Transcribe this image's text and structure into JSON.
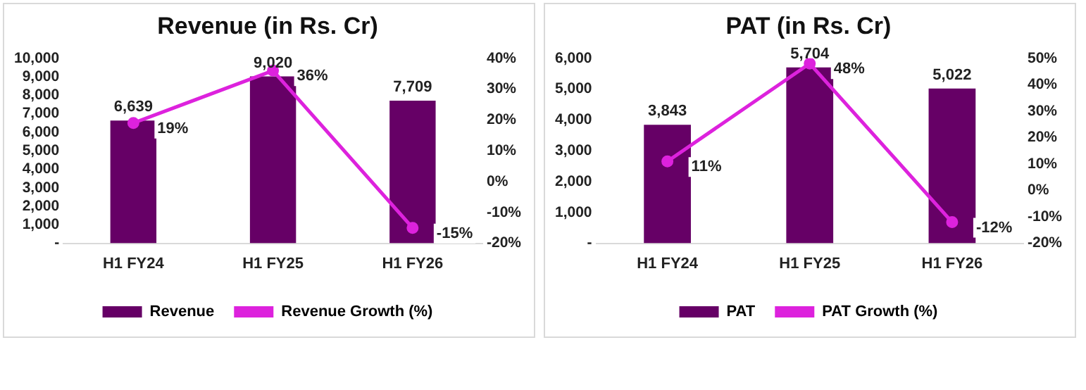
{
  "chart_data": [
    {
      "type": "bar",
      "title": "Revenue (in Rs. Cr)",
      "categories": [
        "H1 FY24",
        "H1 FY25",
        "H1 FY26"
      ],
      "series": [
        {
          "name": "Revenue",
          "color": "#660066",
          "values": [
            6639,
            9020,
            7709
          ],
          "value_labels": [
            "6,639",
            "9,020",
            "7,709"
          ]
        },
        {
          "name": "Revenue Growth (%)",
          "type": "line",
          "axis": "y2",
          "color": "#dd22dd",
          "values": [
            19,
            36,
            -15
          ],
          "value_labels": [
            "19%",
            "36%",
            "-15%"
          ]
        }
      ],
      "ylim": [
        0,
        10000
      ],
      "yticks": [
        {
          "value": 0,
          "label": "-"
        },
        {
          "value": 1000,
          "label": "1,000"
        },
        {
          "value": 2000,
          "label": "2,000"
        },
        {
          "value": 3000,
          "label": "3,000"
        },
        {
          "value": 4000,
          "label": "4,000"
        },
        {
          "value": 5000,
          "label": "5,000"
        },
        {
          "value": 6000,
          "label": "6,000"
        },
        {
          "value": 7000,
          "label": "7,000"
        },
        {
          "value": 8000,
          "label": "8,000"
        },
        {
          "value": 9000,
          "label": "9,000"
        },
        {
          "value": 10000,
          "label": "10,000"
        }
      ],
      "y2lim": [
        -20,
        40
      ],
      "y2ticks": [
        {
          "value": -20,
          "label": "-20%"
        },
        {
          "value": -10,
          "label": "-10%"
        },
        {
          "value": 0,
          "label": "0%"
        },
        {
          "value": 10,
          "label": "10%"
        },
        {
          "value": 20,
          "label": "20%"
        },
        {
          "value": 30,
          "label": "30%"
        },
        {
          "value": 40,
          "label": "40%"
        }
      ],
      "grid": false,
      "legend": "bottom",
      "marker": "circle",
      "line_style": "solid"
    },
    {
      "type": "bar",
      "title": "PAT (in Rs. Cr)",
      "categories": [
        "H1 FY24",
        "H1 FY25",
        "H1 FY26"
      ],
      "series": [
        {
          "name": "PAT",
          "color": "#660066",
          "values": [
            3843,
            5704,
            5022
          ],
          "value_labels": [
            "3,843",
            "5,704",
            "5,022"
          ]
        },
        {
          "name": "PAT Growth (%)",
          "type": "line",
          "axis": "y2",
          "color": "#dd22dd",
          "values": [
            11,
            48,
            -12
          ],
          "value_labels": [
            "11%",
            "48%",
            "-12%"
          ]
        }
      ],
      "ylim": [
        0,
        6000
      ],
      "yticks": [
        {
          "value": 0,
          "label": "-"
        },
        {
          "value": 1000,
          "label": "1,000"
        },
        {
          "value": 2000,
          "label": "2,000"
        },
        {
          "value": 3000,
          "label": "3,000"
        },
        {
          "value": 4000,
          "label": "4,000"
        },
        {
          "value": 5000,
          "label": "5,000"
        },
        {
          "value": 6000,
          "label": "6,000"
        }
      ],
      "y2lim": [
        -20,
        50
      ],
      "y2ticks": [
        {
          "value": -20,
          "label": "-20%"
        },
        {
          "value": -10,
          "label": "-10%"
        },
        {
          "value": 0,
          "label": "0%"
        },
        {
          "value": 10,
          "label": "10%"
        },
        {
          "value": 20,
          "label": "20%"
        },
        {
          "value": 30,
          "label": "30%"
        },
        {
          "value": 40,
          "label": "40%"
        },
        {
          "value": 50,
          "label": "50%"
        }
      ],
      "grid": false,
      "legend": "bottom",
      "marker": "circle",
      "line_style": "solid"
    }
  ]
}
